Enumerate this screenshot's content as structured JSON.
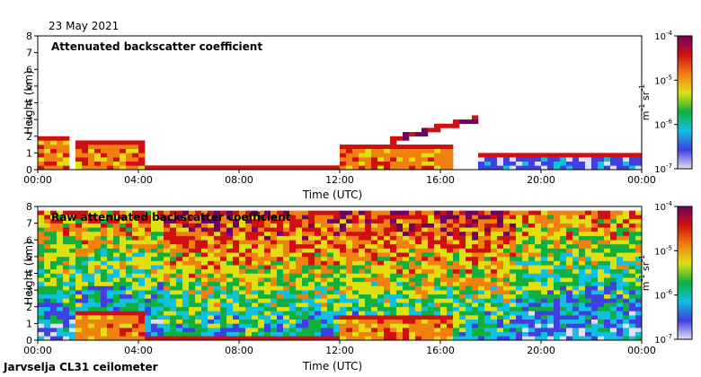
{
  "date": "23 May 2021",
  "footer": "Jarvselja CL31 ceilometer",
  "colors": {
    "scale": [
      "#e0e0f4",
      "#4040e0",
      "#10c0e0",
      "#10b040",
      "#e0e010",
      "#f08010",
      "#d01010",
      "#700060"
    ]
  },
  "chart_data": [
    {
      "type": "heatmap",
      "title": "Attenuated backscatter coefficient",
      "xlabel": "Time (UTC)",
      "ylabel": "Height (km)",
      "xlim": [
        0,
        24
      ],
      "ylim": [
        0,
        8
      ],
      "xticks": [
        "00:00",
        "04:00",
        "08:00",
        "12:00",
        "16:00",
        "20:00",
        "00:00"
      ],
      "yticks": [
        "0",
        "1",
        "2",
        "3",
        "4",
        "5",
        "6",
        "7",
        "8"
      ],
      "colorbar": {
        "label": "m-1 sr-1",
        "unit_m": "m",
        "unit_m_exp": "-1",
        "unit_sr": "sr",
        "unit_sr_exp": "-1",
        "scale": "log",
        "range": [
          1e-07,
          0.0001
        ],
        "ticks": [
          {
            "base": "10",
            "exp": "-4",
            "value": 0.0001
          },
          {
            "base": "10",
            "exp": "-5",
            "value": 1e-05
          },
          {
            "base": "10",
            "exp": "-6",
            "value": 1e-06
          },
          {
            "base": "10",
            "exp": "-7",
            "value": 1e-07
          }
        ]
      },
      "features": [
        {
          "name": "early boundary layer",
          "t": [
            0,
            1.2
          ],
          "top_km": 1.9,
          "level": 5
        },
        {
          "name": "aerosol layer",
          "t": [
            1.5,
            4.2
          ],
          "top_km": 1.8,
          "level": 5
        },
        {
          "name": "surface layer",
          "t": [
            4.2,
            12
          ],
          "top_km": 0.3,
          "level": 4
        },
        {
          "name": "afternoon boundary layer",
          "t": [
            12,
            16.5
          ],
          "top_km": 1.6,
          "level": 5
        },
        {
          "name": "rising cloud layer",
          "t": [
            14,
            17.6
          ],
          "base_km": 1.7,
          "top_km": 3.1,
          "level": 6
        },
        {
          "name": "night background",
          "t": [
            17.5,
            24
          ],
          "top_km": 0.9,
          "level": 1
        }
      ]
    },
    {
      "type": "heatmap",
      "title": "Raw attenuated backscatter coefficient",
      "xlabel": "Time (UTC)",
      "ylabel": "Height (km)",
      "xlim": [
        0,
        24
      ],
      "ylim": [
        0,
        8
      ],
      "xticks": [
        "00:00",
        "04:00",
        "08:00",
        "12:00",
        "16:00",
        "20:00",
        "00:00"
      ],
      "yticks": [
        "0",
        "1",
        "2",
        "3",
        "4",
        "5",
        "6",
        "7",
        "8"
      ],
      "colorbar": {
        "label": "m-1 sr-1",
        "unit_m": "m",
        "unit_m_exp": "-1",
        "unit_sr": "sr",
        "unit_sr_exp": "-1",
        "scale": "log",
        "range": [
          1e-07,
          0.0001
        ],
        "ticks": [
          {
            "base": "10",
            "exp": "-4",
            "value": 0.0001
          },
          {
            "base": "10",
            "exp": "-5",
            "value": 1e-05
          },
          {
            "base": "10",
            "exp": "-6",
            "value": 1e-06
          },
          {
            "base": "10",
            "exp": "-7",
            "value": 1e-07
          }
        ]
      },
      "features": [
        {
          "name": "noisy background",
          "t": [
            0,
            24
          ],
          "top_km": 7.7,
          "level": 3
        },
        {
          "name": "aerosol layer",
          "t": [
            1.5,
            4.2
          ],
          "top_km": 1.8,
          "level": 5
        },
        {
          "name": "surface layer",
          "t": [
            4.2,
            12
          ],
          "top_km": 0.3,
          "level": 5
        },
        {
          "name": "afternoon boundary layer",
          "t": [
            12,
            16.5
          ],
          "top_km": 1.6,
          "level": 5
        }
      ]
    }
  ]
}
